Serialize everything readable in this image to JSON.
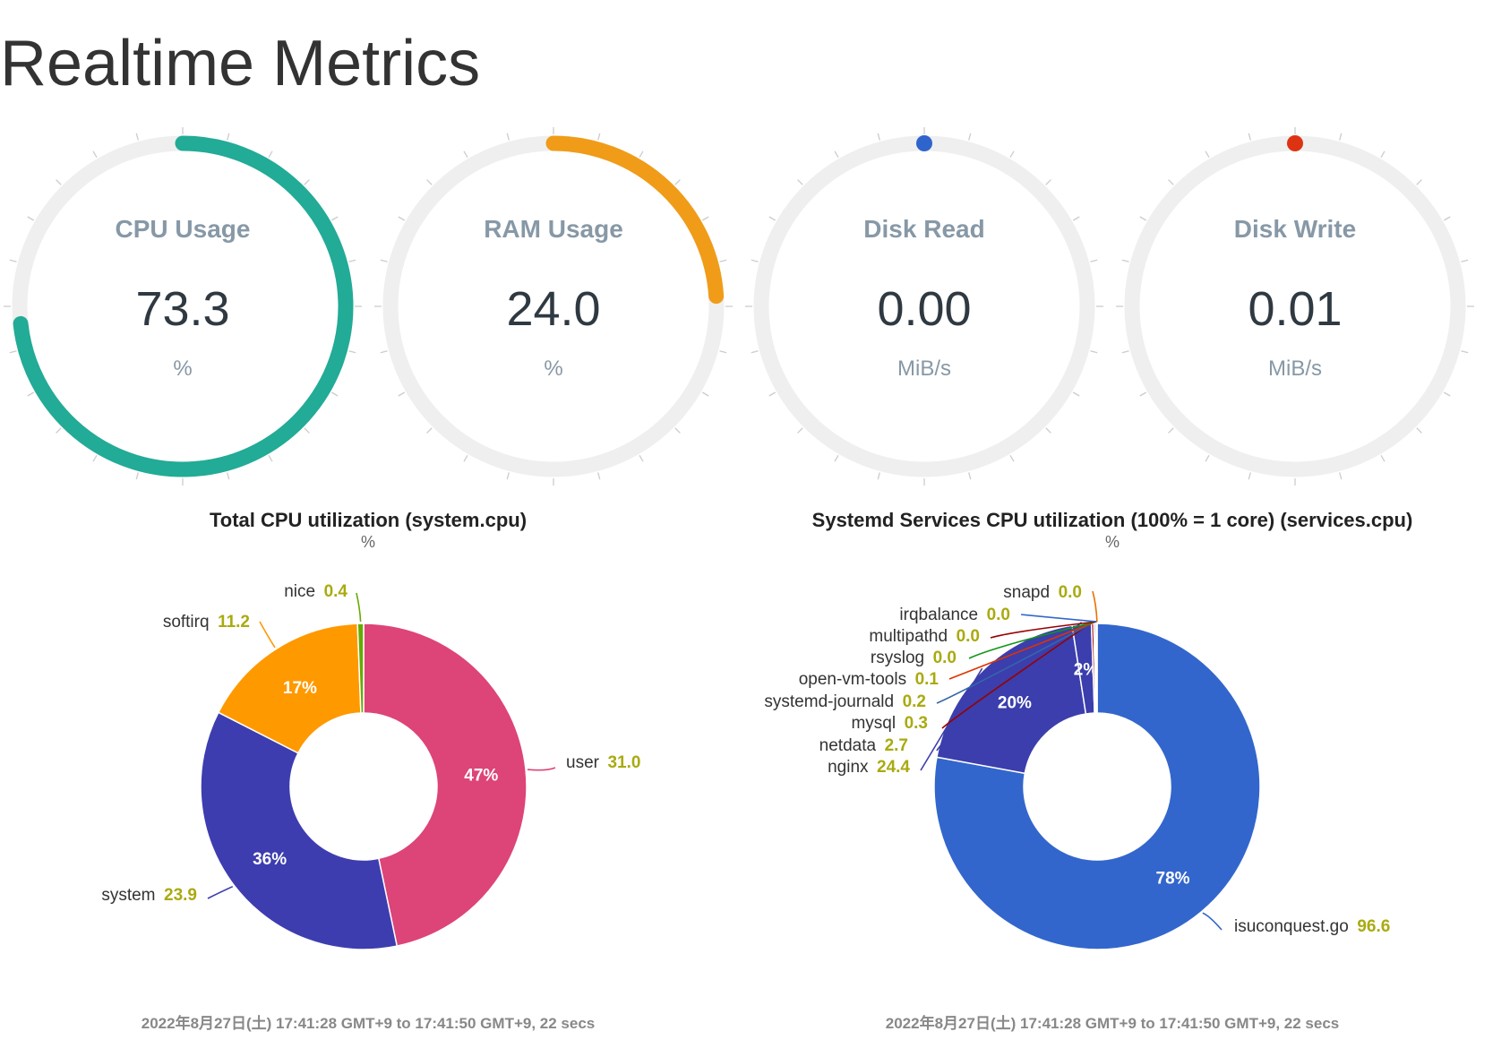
{
  "page": {
    "title": "Realtime Metrics"
  },
  "gauges": [
    {
      "title": "CPU Usage",
      "value": "73.3",
      "unit": "%",
      "fraction": 0.733,
      "color": "#22ab96"
    },
    {
      "title": "RAM Usage",
      "value": "24.0",
      "unit": "%",
      "fraction": 0.24,
      "color": "#f09c19"
    },
    {
      "title": "Disk Read",
      "value": "0.00",
      "unit": "MiB/s",
      "fraction": 0,
      "color": "#2e64cc"
    },
    {
      "title": "Disk Write",
      "value": "0.01",
      "unit": "MiB/s",
      "fraction": 0,
      "color": "#dd3312"
    }
  ],
  "chart_data": [
    {
      "type": "pie",
      "title": "Total CPU utilization (system.cpu)",
      "unit": "%",
      "footer": "2022年8月27日(土) 17:41:28 GMT+9 to 17:41:50 GMT+9, 22 secs",
      "slices": [
        {
          "label": "user",
          "value": "31.0",
          "share": 47,
          "pct_label": "47%",
          "color": "#dd4477"
        },
        {
          "label": "system",
          "value": "23.9",
          "share": 36,
          "pct_label": "36%",
          "color": "#3d3db0"
        },
        {
          "label": "softirq",
          "value": "11.2",
          "share": 17,
          "pct_label": "17%",
          "color": "#ff9900"
        },
        {
          "label": "nice",
          "value": "0.4",
          "share": 0.6,
          "pct_label": "",
          "color": "#66aa00"
        }
      ]
    },
    {
      "type": "pie",
      "title": "Systemd Services CPU utilization (100% = 1 core) (services.cpu)",
      "unit": "%",
      "footer": "2022年8月27日(土) 17:41:28 GMT+9 to 17:41:50 GMT+9, 22 secs",
      "slices": [
        {
          "label": "isuconquest.go",
          "value": "96.6",
          "share": 78,
          "pct_label": "78%",
          "color": "#3366cc"
        },
        {
          "label": "nginx",
          "value": "24.4",
          "share": 19.7,
          "pct_label": "20%",
          "color": "#3b3eac"
        },
        {
          "label": "netdata",
          "value": "2.7",
          "share": 1.9,
          "pct_label": "2%",
          "color": "#3b3eac"
        },
        {
          "label": "mysql",
          "value": "0.3",
          "share": 0.24,
          "pct_label": "",
          "color": "#990000"
        },
        {
          "label": "systemd-journald",
          "value": "0.2",
          "share": 0.16,
          "pct_label": "",
          "color": "#3366aa"
        },
        {
          "label": "open-vm-tools",
          "value": "0.1",
          "share": 0.08,
          "pct_label": "",
          "color": "#dd3300"
        },
        {
          "label": "rsyslog",
          "value": "0.0",
          "share": 0.02,
          "pct_label": "",
          "color": "#109618"
        },
        {
          "label": "multipathd",
          "value": "0.0",
          "share": 0.02,
          "pct_label": "",
          "color": "#990000"
        },
        {
          "label": "irqbalance",
          "value": "0.0",
          "share": 0.02,
          "pct_label": "",
          "color": "#3366cc"
        },
        {
          "label": "snapd",
          "value": "0.0",
          "share": 0.02,
          "pct_label": "",
          "color": "#e67300"
        }
      ]
    }
  ]
}
